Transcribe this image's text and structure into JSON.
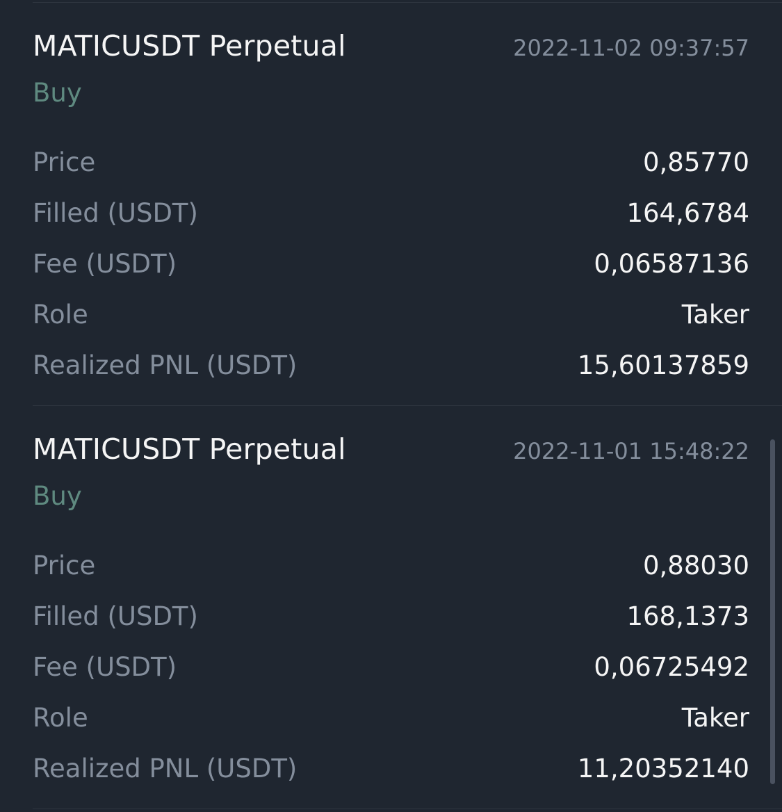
{
  "trades": [
    {
      "symbol": "MATICUSDT Perpetual",
      "datetime": "2022-11-02 09:37:57",
      "side": "Buy",
      "rows": [
        {
          "label": "Price",
          "value": "0,85770"
        },
        {
          "label": "Filled (USDT)",
          "value": "164,6784"
        },
        {
          "label": "Fee (USDT)",
          "value": "0,06587136"
        },
        {
          "label": "Role",
          "value": "Taker"
        },
        {
          "label": "Realized PNL (USDT)",
          "value": "15,60137859"
        }
      ]
    },
    {
      "symbol": "MATICUSDT Perpetual",
      "datetime": "2022-11-01 15:48:22",
      "side": "Buy",
      "rows": [
        {
          "label": "Price",
          "value": "0,88030"
        },
        {
          "label": "Filled (USDT)",
          "value": "168,1373"
        },
        {
          "label": "Fee (USDT)",
          "value": "0,06725492"
        },
        {
          "label": "Role",
          "value": "Taker"
        },
        {
          "label": "Realized PNL (USDT)",
          "value": "11,20352140"
        }
      ]
    }
  ],
  "colors": {
    "background": "#1f2630",
    "buy": "#5f8a80",
    "label": "#848e9c",
    "value": "#f5f5f5",
    "divider": "#2e3540"
  }
}
